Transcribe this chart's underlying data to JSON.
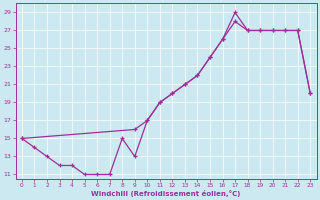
{
  "xlabel": "Windchill (Refroidissement éolien,°C)",
  "xlim": [
    -0.5,
    23.5
  ],
  "ylim": [
    10.5,
    30
  ],
  "xticks": [
    0,
    1,
    2,
    3,
    4,
    5,
    6,
    7,
    8,
    9,
    10,
    11,
    12,
    13,
    14,
    15,
    16,
    17,
    18,
    19,
    20,
    21,
    22,
    23
  ],
  "yticks": [
    11,
    13,
    15,
    17,
    19,
    21,
    23,
    25,
    27,
    29
  ],
  "bg_color": "#cce8f0",
  "line_color": "#993399",
  "upper_x": [
    0,
    9,
    10,
    11,
    12,
    13,
    14,
    15,
    16,
    17,
    18,
    19,
    20,
    21,
    22,
    23
  ],
  "upper_y": [
    15,
    16,
    17,
    19,
    20,
    21,
    22,
    24,
    26,
    29,
    27,
    27,
    27,
    27,
    27,
    20
  ],
  "lower_x": [
    0,
    1,
    2,
    3,
    4,
    5,
    6,
    7,
    8,
    9,
    10,
    11,
    12,
    13,
    14,
    15,
    16,
    17,
    18,
    19,
    20,
    21,
    22,
    23
  ],
  "lower_y": [
    15,
    14,
    13,
    12,
    12,
    11,
    11,
    11,
    15,
    13,
    17,
    19,
    20,
    21,
    22,
    24,
    26,
    28,
    27,
    27,
    27,
    27,
    27,
    20
  ]
}
